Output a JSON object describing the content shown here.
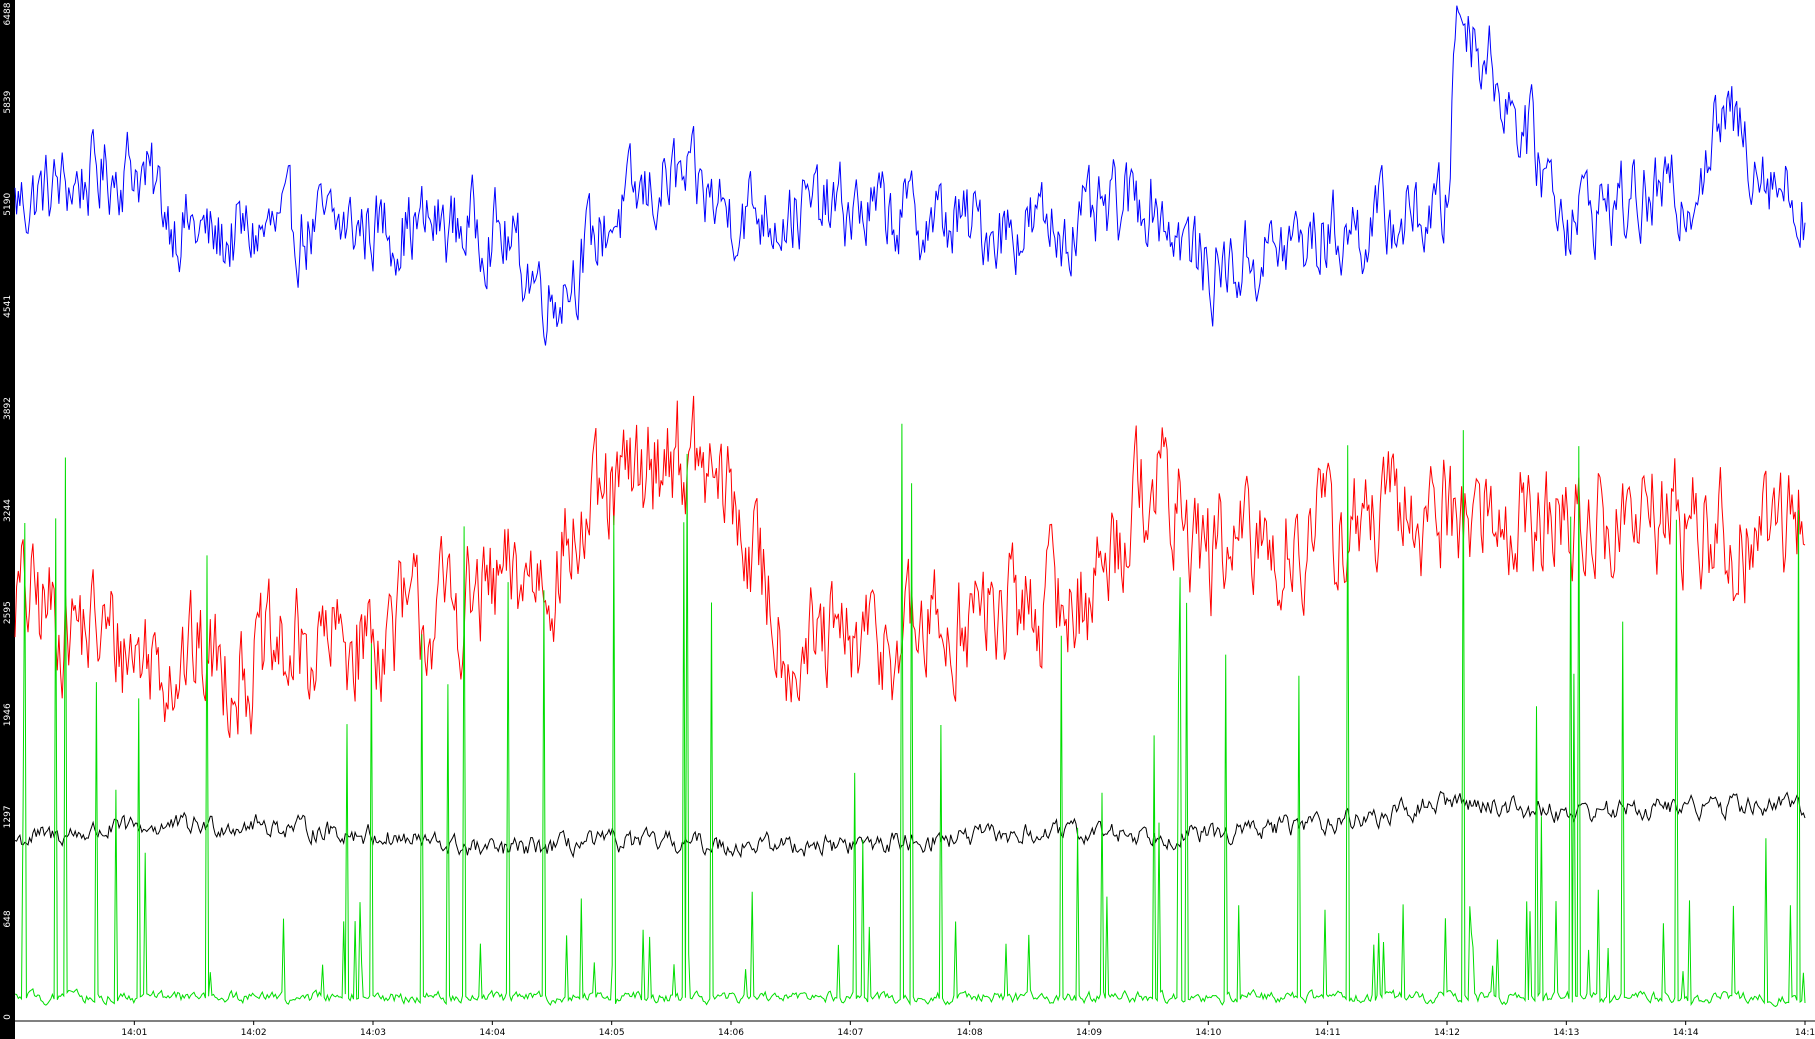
{
  "chart_data": {
    "type": "line",
    "title": "",
    "xlabel": "",
    "ylabel": "",
    "ylim": [
      0,
      6488
    ],
    "xlim": [
      "14:00:00",
      "14:15:00"
    ],
    "grid": false,
    "legend": "none",
    "y_ticks": [
      "0",
      "648",
      "1297",
      "1946",
      "2595",
      "3244",
      "3892",
      "4541",
      "5190",
      "5839",
      "6488"
    ],
    "x_ticks": [
      "14:01",
      "14:02",
      "14:03",
      "14:04",
      "14:05",
      "14:06",
      "14:07",
      "14:08",
      "14:09",
      "14:10",
      "14:11",
      "14:12",
      "14:13",
      "14:14",
      "14:1"
    ],
    "series": [
      {
        "color": "#0000ff",
        "baseline": 5190,
        "noise": 220,
        "x": [
          "14:00",
          "14:01",
          "14:01:20",
          "14:01:40",
          "14:02",
          "14:03",
          "14:04",
          "14:04:30",
          "14:05",
          "14:05:30",
          "14:06",
          "14:07",
          "14:08",
          "14:09",
          "14:09:30",
          "14:10",
          "14:11",
          "14:12",
          "14:12:05",
          "14:13",
          "14:14",
          "14:14:20",
          "14:15"
        ],
        "values": [
          5200,
          5450,
          5100,
          4950,
          5000,
          5050,
          5050,
          4600,
          5100,
          5350,
          5150,
          5150,
          5050,
          5050,
          5250,
          4750,
          5000,
          5150,
          6488,
          5150,
          5250,
          5750,
          5150
        ]
      },
      {
        "color": "#ff0000",
        "baseline": 2600,
        "noise": 320,
        "x": [
          "14:00",
          "14:01",
          "14:02",
          "14:03",
          "14:04",
          "14:04:30",
          "14:05",
          "14:05:30",
          "14:06",
          "14:06:30",
          "14:07",
          "14:08",
          "14:09",
          "14:09:30",
          "14:10",
          "14:11",
          "14:12",
          "14:13",
          "14:14",
          "14:14:30",
          "14:15"
        ],
        "values": [
          2700,
          2350,
          2250,
          2450,
          2700,
          2900,
          3300,
          3650,
          3300,
          2350,
          2350,
          2550,
          2700,
          3500,
          2950,
          3100,
          3250,
          3150,
          3200,
          3000,
          3300
        ]
      },
      {
        "color": "#000000",
        "baseline": 1200,
        "noise": 55,
        "x": [
          "14:00",
          "14:01",
          "14:02",
          "14:03",
          "14:04",
          "14:05",
          "14:06",
          "14:07",
          "14:08",
          "14:09",
          "14:10",
          "14:11",
          "14:11:30",
          "14:12",
          "14:13",
          "14:14",
          "14:15"
        ],
        "values": [
          1150,
          1230,
          1250,
          1180,
          1080,
          1140,
          1120,
          1120,
          1170,
          1200,
          1180,
          1270,
          1300,
          1400,
          1330,
          1360,
          1370
        ]
      },
      {
        "color": "#00dd00",
        "baseline": 150,
        "noise": 30,
        "x": [
          "14:00",
          "14:15"
        ],
        "values": [
          150,
          150
        ]
      }
    ]
  }
}
